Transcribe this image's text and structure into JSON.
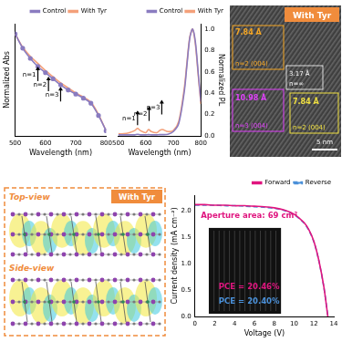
{
  "chart_data": [
    {
      "type": "line",
      "x_label": "Wavelength (nm)",
      "y_label": "Normalized Abs",
      "x": [
        500,
        525,
        550,
        575,
        600,
        625,
        650,
        675,
        700,
        725,
        750,
        775,
        800
      ],
      "series": [
        {
          "name": "Control",
          "color": "#8a7cc0",
          "marker": "circle",
          "values": [
            1.0,
            0.86,
            0.76,
            0.68,
            0.62,
            0.56,
            0.5,
            0.45,
            0.41,
            0.37,
            0.32,
            0.2,
            0.05
          ]
        },
        {
          "name": "With Tyr",
          "color": "#f4a07a",
          "values": [
            1.0,
            0.87,
            0.78,
            0.71,
            0.64,
            0.58,
            0.52,
            0.47,
            0.42,
            0.38,
            0.33,
            0.21,
            0.05
          ]
        }
      ],
      "xlim": [
        500,
        800
      ],
      "xticks": [
        500,
        600,
        700,
        800
      ],
      "ylim": [
        0,
        1.1
      ],
      "tick_labels": "x",
      "legend": "upper right",
      "annotations": [
        {
          "text": "n=1",
          "x": 575,
          "y": 0.6
        },
        {
          "text": "n=2",
          "x": 610,
          "y": 0.5
        },
        {
          "text": "n=3",
          "x": 650,
          "y": 0.4
        }
      ]
    },
    {
      "type": "line",
      "x_label": "Wavelength (nm)",
      "y_label": "Normalized PL",
      "x": [
        500,
        520,
        540,
        560,
        570,
        580,
        600,
        610,
        620,
        640,
        650,
        660,
        680,
        700,
        720,
        740,
        750,
        760,
        770,
        780,
        790,
        800
      ],
      "series": [
        {
          "name": "Control",
          "color": "#8a7cc0",
          "values": [
            0.01,
            0.01,
            0.01,
            0.01,
            0.015,
            0.01,
            0.01,
            0.012,
            0.01,
            0.01,
            0.012,
            0.012,
            0.015,
            0.04,
            0.12,
            0.42,
            0.68,
            0.92,
            1.0,
            0.88,
            0.6,
            0.32
          ]
        },
        {
          "name": "With Tyr",
          "color": "#f4a07a",
          "values": [
            0.02,
            0.02,
            0.03,
            0.05,
            0.07,
            0.05,
            0.03,
            0.06,
            0.04,
            0.03,
            0.05,
            0.06,
            0.04,
            0.05,
            0.14,
            0.45,
            0.7,
            0.93,
            1.0,
            0.86,
            0.58,
            0.3
          ]
        }
      ],
      "xlim": [
        500,
        800
      ],
      "xticks": [
        500,
        600,
        700,
        800
      ],
      "ylim": [
        0,
        1.05
      ],
      "yticks": [
        {
          "value": 0,
          "label": "0.0"
        },
        0.2,
        0.4,
        0.6,
        0.8,
        {
          "value": 1,
          "label": "1.0"
        }
      ],
      "legend": "upper right",
      "annotations": [
        {
          "text": "n=1",
          "x": 570,
          "y": 0.16
        },
        {
          "text": "n=2",
          "x": 612,
          "y": 0.2
        },
        {
          "text": "n=3",
          "x": 658,
          "y": 0.26
        }
      ]
    },
    {
      "type": "line",
      "x_label": "Voltage (V)",
      "y_label": "Current density (mA cm⁻²)",
      "x": [
        0,
        1,
        2,
        3,
        4,
        5,
        6,
        7,
        8,
        9,
        10,
        11,
        11.5,
        12,
        12.5,
        13,
        13.4
      ],
      "series": [
        {
          "name": "Forward",
          "color": "#e0157f",
          "line_style": "solid",
          "values": [
            2.12,
            2.12,
            2.11,
            2.11,
            2.1,
            2.1,
            2.09,
            2.08,
            2.06,
            2.02,
            1.94,
            1.78,
            1.64,
            1.42,
            1.06,
            0.56,
            0
          ]
        },
        {
          "name": "Reverse",
          "color": "#4a90d9",
          "line_style": "dashed",
          "values": [
            2.11,
            2.11,
            2.11,
            2.1,
            2.1,
            2.09,
            2.08,
            2.07,
            2.05,
            2.01,
            1.93,
            1.77,
            1.63,
            1.41,
            1.05,
            0.55,
            0
          ]
        }
      ],
      "xlim": [
        0,
        14
      ],
      "xticks": [
        0,
        2,
        4,
        6,
        8,
        10,
        12,
        14
      ],
      "ylim": [
        0,
        2.3
      ],
      "yticks": [
        {
          "value": 0,
          "label": "0.0"
        },
        0.5,
        {
          "value": 1,
          "label": "1.0"
        },
        1.5,
        {
          "value": 2,
          "label": "2.0"
        }
      ],
      "legend": "upper right",
      "annotations": [
        {
          "text": "Aperture area: 69 cm²",
          "x": 0.6,
          "y": 1.9,
          "color": "#e0157f"
        },
        {
          "text": "PCE = 20.46%",
          "x": 2.4,
          "y": 0.55,
          "color": "#e0157f"
        },
        {
          "text": "PCE = 20.40%",
          "x": 2.4,
          "y": 0.28,
          "color": "#4a90d9"
        }
      ]
    }
  ],
  "tem": {
    "badge": "With Tyr",
    "scale_bar": "5 nm",
    "regions": [
      {
        "d": "7.84 Å",
        "phase": "n=2 (004)"
      },
      {
        "d": "10.98 Å",
        "phase": "n=3 (004)"
      },
      {
        "d": "3.17 Å",
        "phase": "n=∞"
      },
      {
        "d": "7.84 Å",
        "phase": "n=2 (004)"
      }
    ]
  },
  "dft": {
    "badge": "With Tyr",
    "views": [
      "Top-view",
      "Side-view"
    ]
  }
}
